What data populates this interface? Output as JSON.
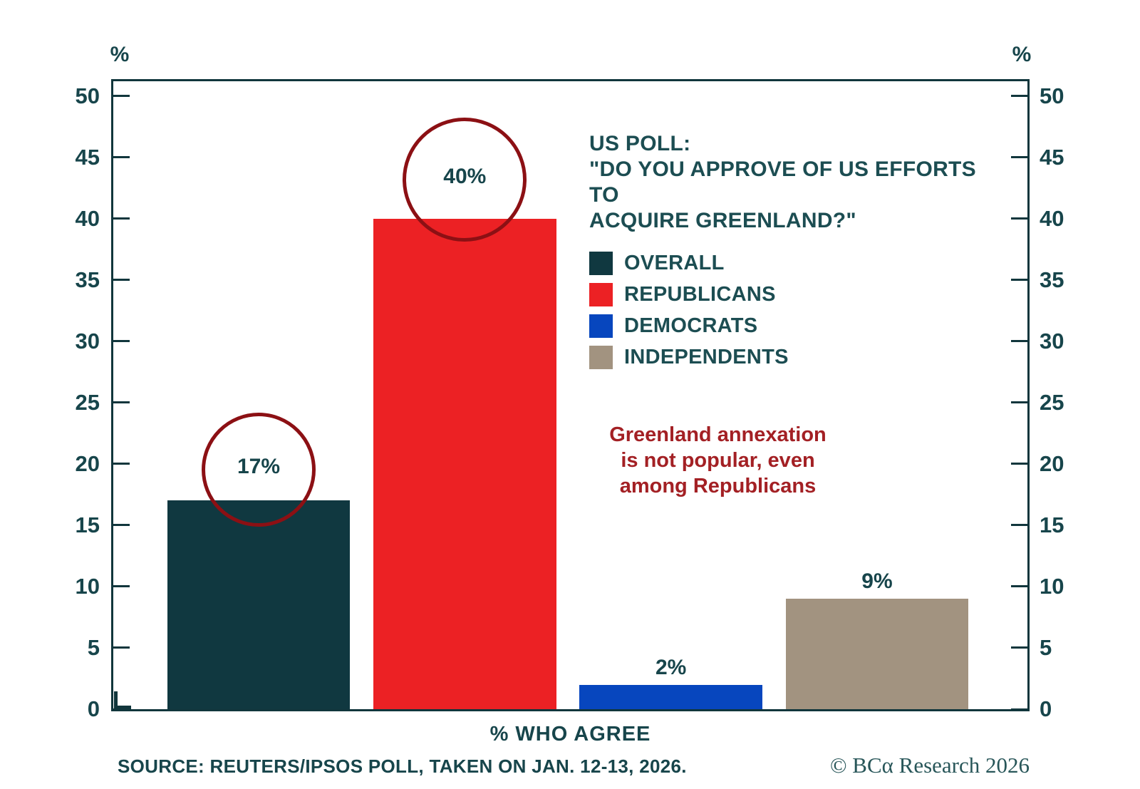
{
  "chart_data": {
    "type": "bar",
    "title": "US POLL: \"DO YOU APPROVE OF US EFFORTS TO ACQUIRE GREENLAND?\"",
    "unit_label": "%",
    "xlabel": "% WHO AGREE",
    "categories": [
      "OVERALL",
      "REPUBLICANS",
      "DEMOCRATS",
      "INDEPENDENTS"
    ],
    "values": [
      17,
      40,
      2,
      9
    ],
    "value_labels": [
      "17%",
      "40%",
      "2%",
      "9%"
    ],
    "colors": [
      "#103840",
      "#EC2124",
      "#0746BE",
      "#A29380"
    ],
    "circled": [
      true,
      true,
      false,
      false
    ],
    "ylim": [
      0,
      51.2
    ],
    "yticks": [
      0,
      5,
      10,
      15,
      20,
      25,
      30,
      35,
      40,
      45,
      50
    ],
    "grid": false,
    "axis_color": "#11363C",
    "legend_position": "upper right"
  },
  "legend": {
    "title_lines": [
      "US POLL:",
      "\"DO YOU APPROVE OF US EFFORTS TO",
      "ACQUIRE GREENLAND?\""
    ],
    "items": [
      {
        "label": "OVERALL",
        "color": "#103840"
      },
      {
        "label": "REPUBLICANS",
        "color": "#EC2124"
      },
      {
        "label": "DEMOCRATS",
        "color": "#0746BE"
      },
      {
        "label": "INDEPENDENTS",
        "color": "#A29380"
      }
    ]
  },
  "annotation": {
    "lines": [
      "Greenland annexation",
      "is not popular, even",
      "among Republicans"
    ],
    "text_color": "#A32024",
    "circle_color": "#8C1014"
  },
  "footer": {
    "source": "SOURCE: REUTERS/IPSOS POLL, TAKEN ON JAN. 12-13, 2026.",
    "copyright": "© BCα Research 2026"
  }
}
